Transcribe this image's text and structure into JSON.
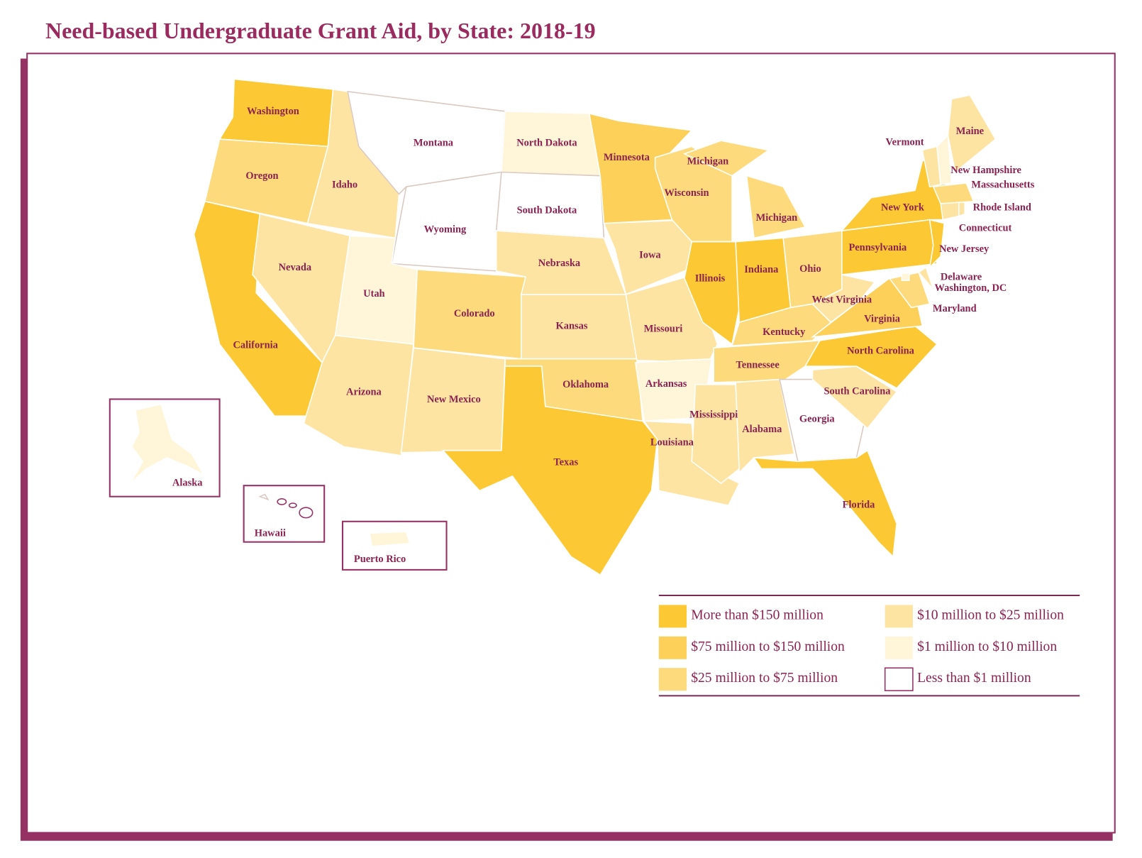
{
  "title": "Need-based Undergraduate Grant Aid, by State:  2018-19",
  "legend": [
    {
      "label": "More than $150 million",
      "color": "#fcc934"
    },
    {
      "label": "$75 million to $150 million",
      "color": "#fdd059"
    },
    {
      "label": "$25 million to $75 million",
      "color": "#fdda7c"
    },
    {
      "label": "$10 million to $25 million",
      "color": "#fee4a2"
    },
    {
      "label": "$1 million to $10 million",
      "color": "#fff5d9"
    },
    {
      "label": "Less than $1 million",
      "color": "#ffffff"
    }
  ],
  "regions": [
    {
      "name": "Washington",
      "tier": 0
    },
    {
      "name": "Oregon",
      "tier": 2
    },
    {
      "name": "California",
      "tier": 0
    },
    {
      "name": "Nevada",
      "tier": 3
    },
    {
      "name": "Idaho",
      "tier": 3
    },
    {
      "name": "Montana",
      "tier": 5
    },
    {
      "name": "Wyoming",
      "tier": 5
    },
    {
      "name": "Utah",
      "tier": 4
    },
    {
      "name": "Arizona",
      "tier": 3
    },
    {
      "name": "Colorado",
      "tier": 2
    },
    {
      "name": "New Mexico",
      "tier": 3
    },
    {
      "name": "North Dakota",
      "tier": 4
    },
    {
      "name": "South Dakota",
      "tier": 5
    },
    {
      "name": "Nebraska",
      "tier": 3
    },
    {
      "name": "Kansas",
      "tier": 3
    },
    {
      "name": "Oklahoma",
      "tier": 2
    },
    {
      "name": "Texas",
      "tier": 0
    },
    {
      "name": "Minnesota",
      "tier": 1
    },
    {
      "name": "Iowa",
      "tier": 3
    },
    {
      "name": "Missouri",
      "tier": 3
    },
    {
      "name": "Arkansas",
      "tier": 4
    },
    {
      "name": "Louisiana",
      "tier": 3
    },
    {
      "name": "Wisconsin",
      "tier": 2
    },
    {
      "name": "Michigan",
      "tier": 2
    },
    {
      "name": "Michigan",
      "tier": 2
    },
    {
      "name": "Illinois",
      "tier": 0
    },
    {
      "name": "Indiana",
      "tier": 0
    },
    {
      "name": "Ohio",
      "tier": 2
    },
    {
      "name": "Kentucky",
      "tier": 2
    },
    {
      "name": "Tennessee",
      "tier": 2
    },
    {
      "name": "Mississippi",
      "tier": 3
    },
    {
      "name": "Alabama",
      "tier": 3
    },
    {
      "name": "Georgia",
      "tier": 5
    },
    {
      "name": "Florida",
      "tier": 0
    },
    {
      "name": "South Carolina",
      "tier": 3
    },
    {
      "name": "North Carolina",
      "tier": 0
    },
    {
      "name": "Virginia",
      "tier": 1
    },
    {
      "name": "West Virginia",
      "tier": 3
    },
    {
      "name": "Pennsylvania",
      "tier": 0
    },
    {
      "name": "New York",
      "tier": 0
    },
    {
      "name": "Maryland",
      "tier": 2
    },
    {
      "name": "Delaware",
      "tier": 3
    },
    {
      "name": "New Jersey",
      "tier": 0
    },
    {
      "name": "Connecticut",
      "tier": 3
    },
    {
      "name": "Rhode Island",
      "tier": 3
    },
    {
      "name": "Massachusetts",
      "tier": 2
    },
    {
      "name": "Vermont",
      "tier": 3
    },
    {
      "name": "New Hampshire",
      "tier": 4
    },
    {
      "name": "Maine",
      "tier": 3
    },
    {
      "name": "Washington, DC",
      "tier": 4
    },
    {
      "name": "Alaska",
      "tier": 4
    },
    {
      "name": "Hawaii",
      "tier": 5
    },
    {
      "name": "Puerto Rico",
      "tier": 4
    }
  ]
}
